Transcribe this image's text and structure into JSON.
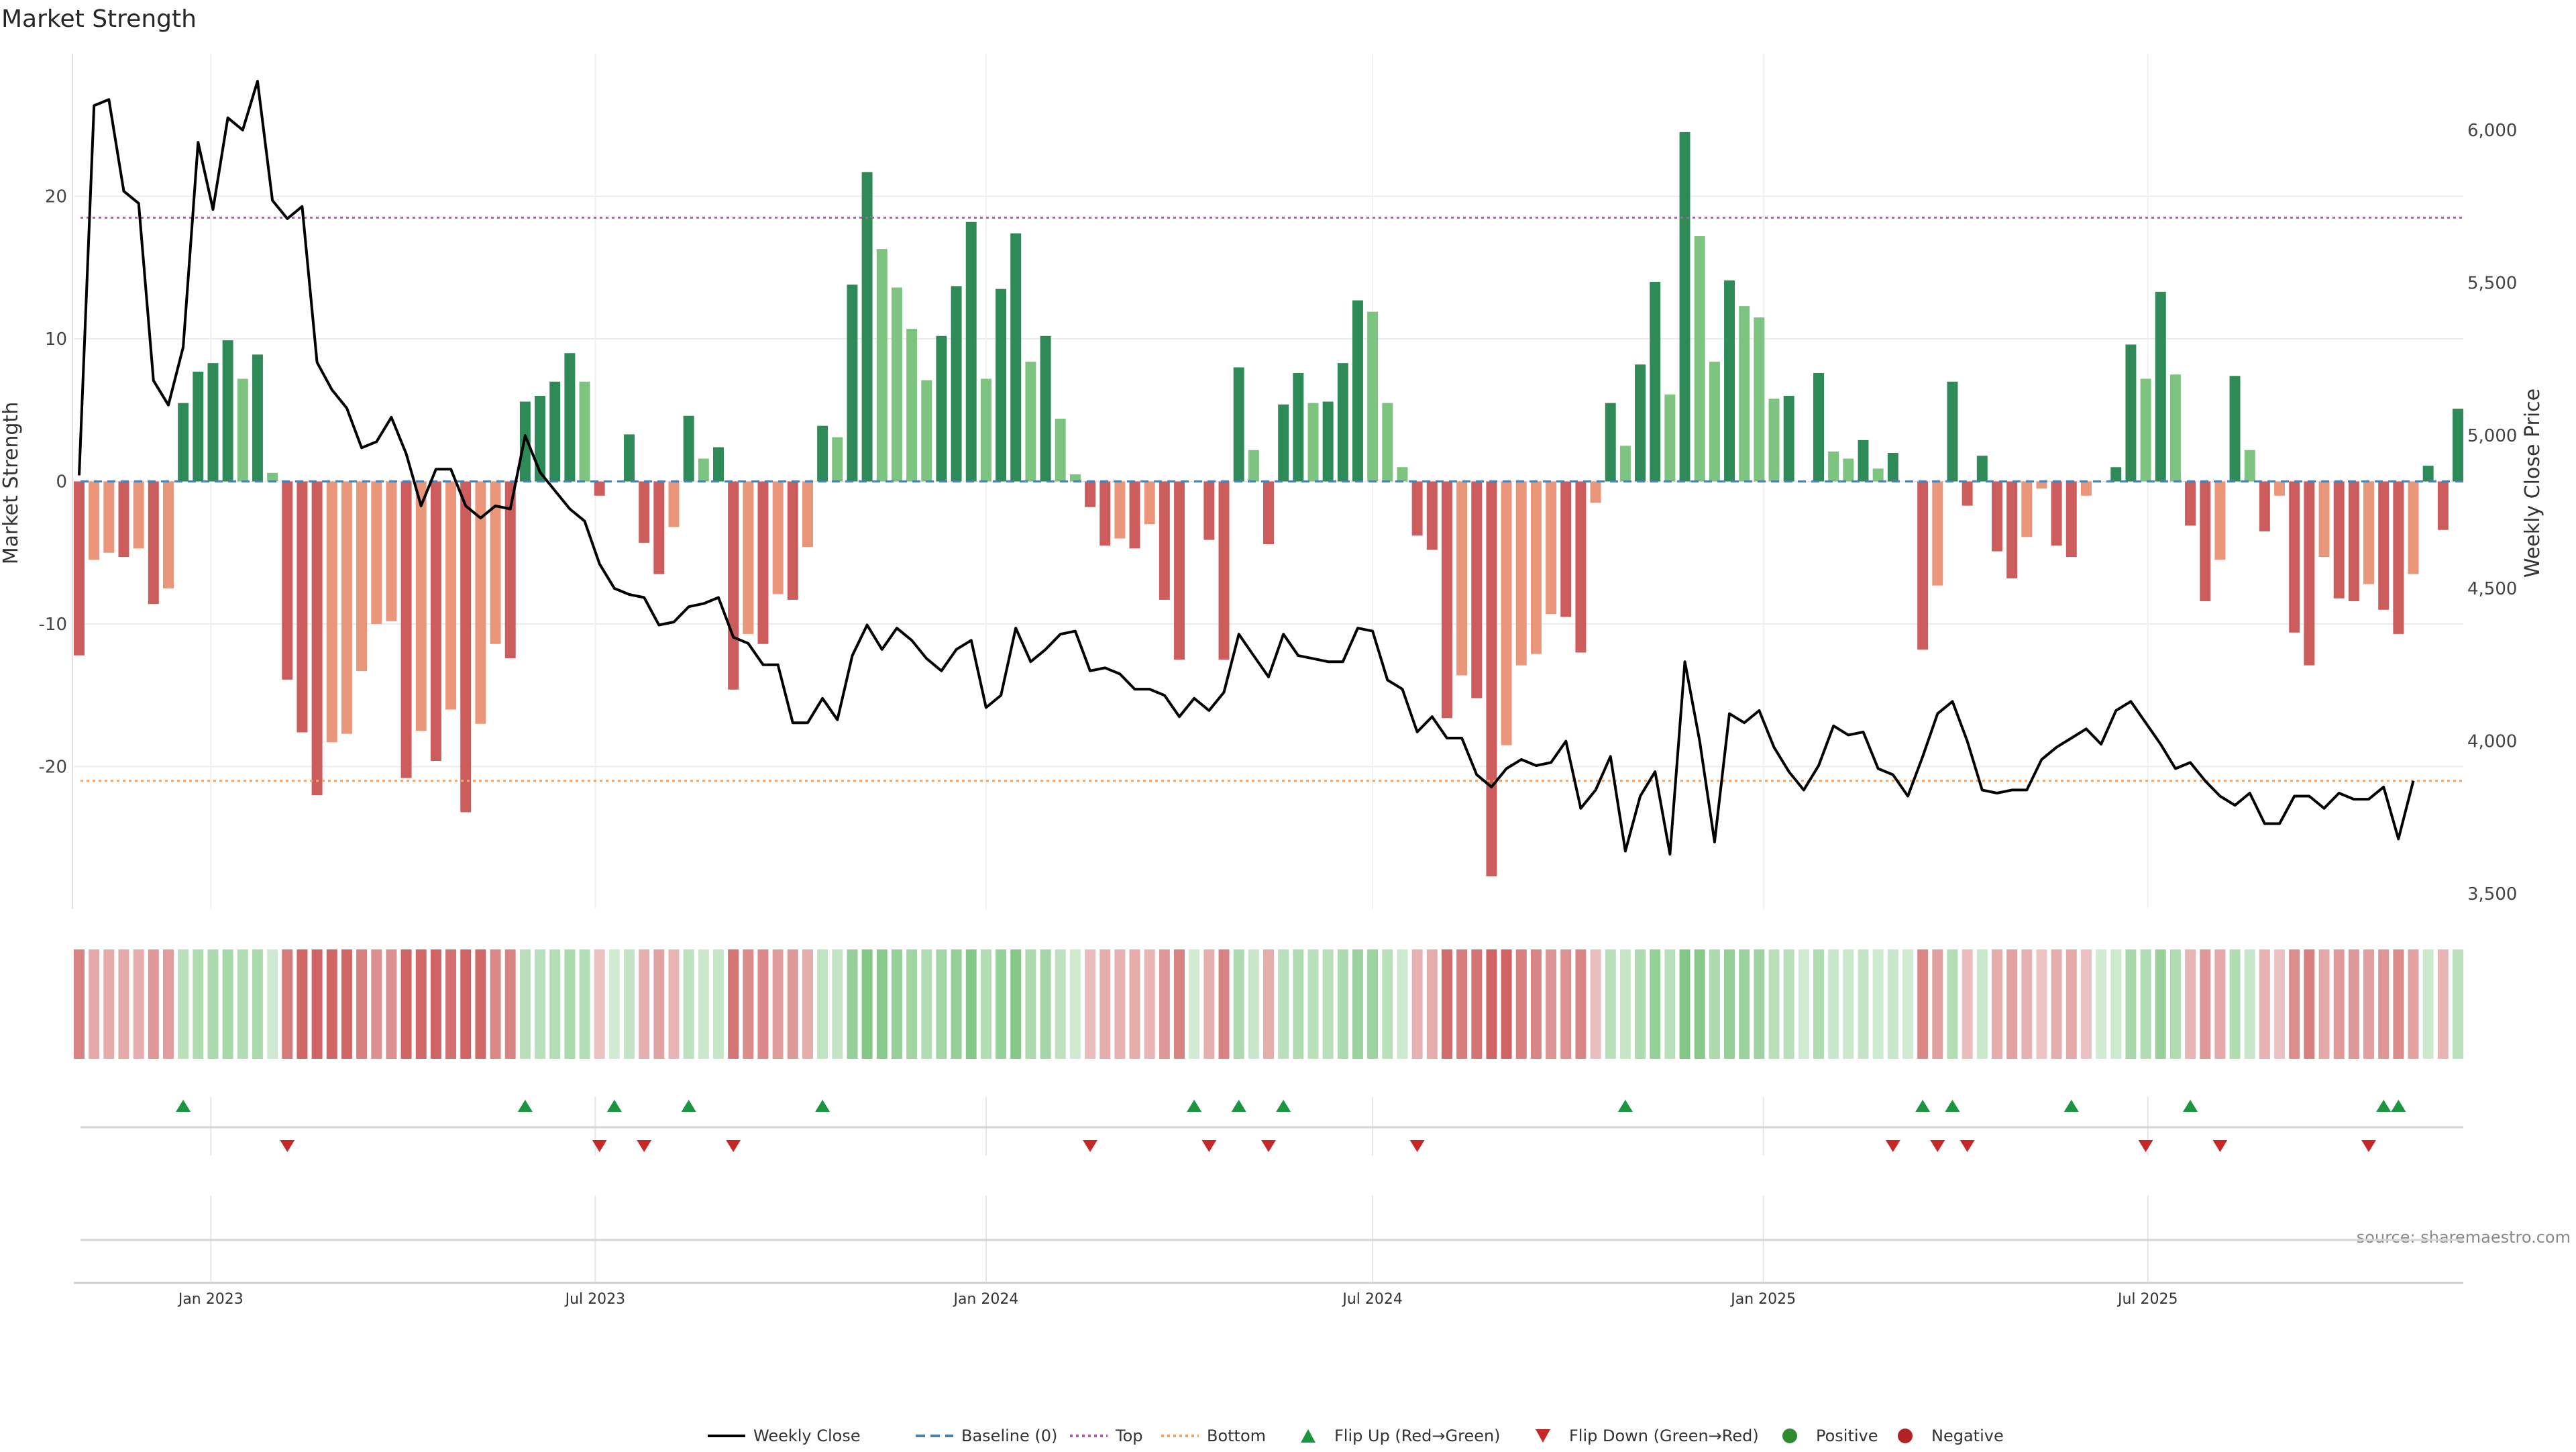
{
  "title": "Market Strength",
  "chart_data": {
    "type": "bar",
    "title": "Market Strength",
    "ylabel": "Market Strength",
    "y2label": "Weekly Close Price",
    "ylim": [
      -30,
      30
    ],
    "y2lim": [
      3450,
      6250
    ],
    "y_ticks": [
      20,
      10,
      0,
      -10,
      -20
    ],
    "y_tick_labels": [
      "20",
      "10",
      "0",
      "-10",
      "-20"
    ],
    "y2_ticks": [
      6000,
      5500,
      5000,
      4500,
      4000,
      3500
    ],
    "y2_tick_labels": [
      "6,000",
      "5,500",
      "5,000",
      "4,500",
      "4,000",
      "3,500"
    ],
    "x_start": "2022-10-31",
    "x_end": "2025-11-24",
    "x_ticks": [
      "2023-01-01",
      "2023-07-01",
      "2024-01-01",
      "2024-07-01",
      "2025-01-01",
      "2025-07-01"
    ],
    "x_tick_labels": [
      "Jan 2023",
      "Jul 2023",
      "Jan 2024",
      "Jul 2024",
      "Jan 2025",
      "Jul 2025"
    ],
    "top_level": 18.5,
    "bottom_level": -21,
    "strength": [
      -12.2,
      -5.5,
      -5,
      -5.3,
      -4.7,
      -8.6,
      -7.5,
      5.5,
      7.7,
      8.3,
      9.9,
      7.2,
      8.9,
      0.6,
      -13.9,
      -17.6,
      -22,
      -18.3,
      -17.7,
      -13.3,
      -10,
      -9.8,
      -20.8,
      -17.5,
      -19.6,
      -16,
      -23.2,
      -17,
      -11.4,
      -12.4,
      5.6,
      6,
      7,
      9,
      7,
      -1,
      0,
      3.3,
      -4.3,
      -6.5,
      -3.2,
      4.6,
      1.6,
      2.4,
      -14.6,
      -10.7,
      -11.4,
      -7.9,
      -8.3,
      -4.6,
      3.9,
      3.1,
      13.8,
      21.7,
      16.3,
      13.6,
      10.7,
      7.1,
      10.2,
      13.7,
      18.2,
      7.2,
      13.5,
      17.4,
      8.4,
      10.2,
      4.4,
      0.5,
      -1.8,
      -4.5,
      -4,
      -4.7,
      -3,
      -8.3,
      -12.5,
      0,
      -4.1,
      -12.5,
      8,
      2.2,
      -4.4,
      5.4,
      7.6,
      5.5,
      5.6,
      8.3,
      12.7,
      11.9,
      5.5,
      1,
      -3.8,
      -4.8,
      -16.6,
      -13.6,
      -15.2,
      -27.7,
      -18.5,
      -12.9,
      -12.1,
      -9.3,
      -9.5,
      -12,
      -1.5,
      5.5,
      2.5,
      8.2,
      14,
      6.1,
      24.5,
      17.2,
      8.4,
      14.1,
      12.3,
      11.5,
      5.8,
      6,
      0,
      7.6,
      2.1,
      1.6,
      2.9,
      0.9,
      2,
      0,
      -11.8,
      -7.3,
      7,
      -1.7,
      1.8,
      -4.9,
      -6.8,
      -3.9,
      -0.5,
      -4.5,
      -5.3,
      -1,
      0,
      1,
      9.6,
      7.2,
      13.3,
      7.5,
      -3.1,
      -8.4,
      -5.5,
      7.4,
      2.2,
      -3.5,
      -1,
      -10.6,
      -12.9,
      -5.3,
      -8.2,
      -8.4,
      -7.2,
      -9,
      -10.7,
      -6.5,
      1.1,
      -3.4,
      5.1
    ],
    "weekly_close": [
      4870,
      6080,
      6100,
      5800,
      5760,
      5180,
      5100,
      5290,
      5960,
      5740,
      6040,
      6000,
      6160,
      5770,
      5710,
      5750,
      5240,
      5150,
      5090,
      4960,
      4980,
      5060,
      4940,
      4770,
      4890,
      4890,
      4770,
      4730,
      4770,
      4760,
      5000,
      4880,
      4820,
      4760,
      4720,
      4580,
      4500,
      4480,
      4470,
      4380,
      4390,
      4440,
      4450,
      4470,
      4340,
      4320,
      4250,
      4250,
      4060,
      4060,
      4140,
      4070,
      4280,
      4380,
      4300,
      4370,
      4330,
      4270,
      4230,
      4300,
      4330,
      4110,
      4150,
      4370,
      4260,
      4300,
      4350,
      4360,
      4230,
      4240,
      4220,
      4170,
      4170,
      4150,
      4080,
      4140,
      4100,
      4160,
      4350,
      4280,
      4210,
      4350,
      4280,
      4270,
      4260,
      4260,
      4370,
      4360,
      4200,
      4170,
      4030,
      4080,
      4010,
      4010,
      3890,
      3850,
      3910,
      3940,
      3920,
      3930,
      4000,
      3780,
      3840,
      3950,
      3640,
      3820,
      3900,
      3630,
      4260,
      4000,
      3670,
      4090,
      4060,
      4100,
      3980,
      3900,
      3840,
      3920,
      4050,
      4020,
      4030,
      3910,
      3890,
      3820,
      3950,
      4090,
      4130,
      4000,
      3840,
      3830,
      3840,
      3840,
      3940,
      3980,
      4010,
      4040,
      3990,
      4100,
      4130,
      4060,
      3990,
      3910,
      3930,
      3870,
      3820,
      3790,
      3830,
      3730,
      3730,
      3820,
      3820,
      3780,
      3830,
      3810,
      3810,
      3850,
      3680,
      3870
    ],
    "flip_up_indices": [
      7,
      30,
      36,
      41,
      50,
      75,
      78,
      81,
      104,
      124,
      126,
      134,
      142,
      155,
      156
    ],
    "flip_down_indices": [
      14,
      35,
      38,
      44,
      68,
      76,
      80,
      90,
      122,
      125,
      127,
      139,
      144,
      154
    ],
    "colors": {
      "strong_positive": "#2e8b57",
      "weak_positive": "#7cc47f",
      "strong_negative": "#cd5c5c",
      "weak_negative": "#e9967a",
      "close_line": "#000000",
      "baseline": "#4a7fb5",
      "top_line": "#b05bb0",
      "bottom_line": "#f4a460",
      "flip_up": "#1a9641",
      "flip_down": "#c62828",
      "positive_marker": "#2e8b2e",
      "negative_marker": "#b22222"
    }
  },
  "legend": [
    {
      "label": "Weekly Close",
      "icon": "line-solid"
    },
    {
      "label": "Baseline (0)",
      "icon": "line-dashed"
    },
    {
      "label": "Top",
      "icon": "line-dotted"
    },
    {
      "label": "Bottom",
      "icon": "line-dotted"
    },
    {
      "label": "Flip Up (Red→Green)",
      "icon": "triangle-up"
    },
    {
      "label": "Flip Down (Green→Red)",
      "icon": "triangle-down"
    },
    {
      "label": "Positive",
      "icon": "circle"
    },
    {
      "label": "Negative",
      "icon": "circle"
    }
  ],
  "source": "source: sharemaestro.com"
}
